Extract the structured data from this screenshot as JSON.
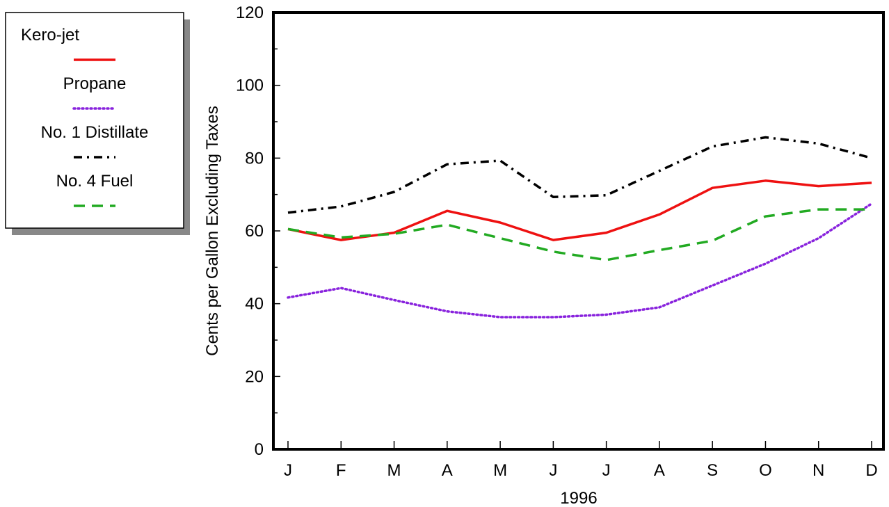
{
  "chart_data": {
    "type": "line",
    "title": "",
    "xlabel": "1996",
    "ylabel": "Cents per Gallon Excluding Taxes",
    "categories": [
      "J",
      "F",
      "M",
      "A",
      "M",
      "J",
      "J",
      "A",
      "S",
      "O",
      "N",
      "D"
    ],
    "ylim": [
      0,
      120
    ],
    "yticks": [
      0,
      20,
      40,
      60,
      80,
      100,
      120
    ],
    "grid": false,
    "legend_position": "left",
    "series": [
      {
        "name": "Kero-jet",
        "color": "#ee1111",
        "dash": "solid",
        "values": [
          60.5,
          57.5,
          59.5,
          65.5,
          62.3,
          57.5,
          59.5,
          64.5,
          71.8,
          73.8,
          72.3,
          73.2
        ]
      },
      {
        "name": "Propane",
        "color": "#8822dd",
        "dash": "dotted",
        "values": [
          41.7,
          44.3,
          41.0,
          37.9,
          36.3,
          36.3,
          37.0,
          39.0,
          45.0,
          51.0,
          58.0,
          67.5
        ]
      },
      {
        "name": "No. 1 Distillate",
        "color": "#000000",
        "dash": "dashdot",
        "values": [
          65.0,
          66.7,
          70.7,
          78.3,
          79.3,
          69.3,
          69.8,
          76.5,
          83.2,
          85.7,
          84.0,
          80.0
        ]
      },
      {
        "name": "No. 4 Fuel",
        "color": "#22aa22",
        "dash": "dashed",
        "values": [
          60.5,
          58.2,
          59.2,
          61.7,
          58.0,
          54.3,
          52.0,
          54.7,
          57.3,
          64.0,
          65.9,
          65.9
        ]
      }
    ]
  }
}
